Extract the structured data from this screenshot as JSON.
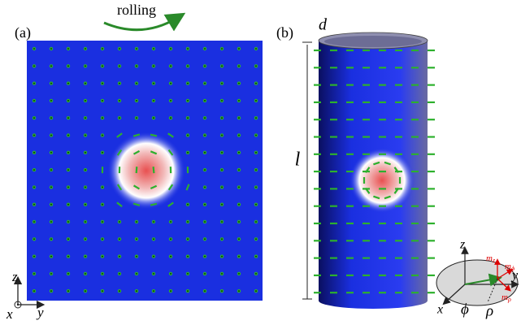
{
  "panel_a": {
    "label": "(a)",
    "arrow_label": "rolling",
    "axes": {
      "z": "z",
      "x": "x",
      "y": "y"
    }
  },
  "panel_b": {
    "label": "(b)",
    "thickness": "d",
    "length": "l"
  },
  "inset": {
    "z": "z",
    "y": "y",
    "x": "x",
    "phi": "ϕ",
    "rho": "ρ",
    "m_z": {
      "base": "m",
      "sub": "z"
    },
    "m_phi": {
      "base": "m",
      "sub": "ϕ"
    },
    "m_rho": {
      "base": "m",
      "sub": "ρ"
    }
  }
}
